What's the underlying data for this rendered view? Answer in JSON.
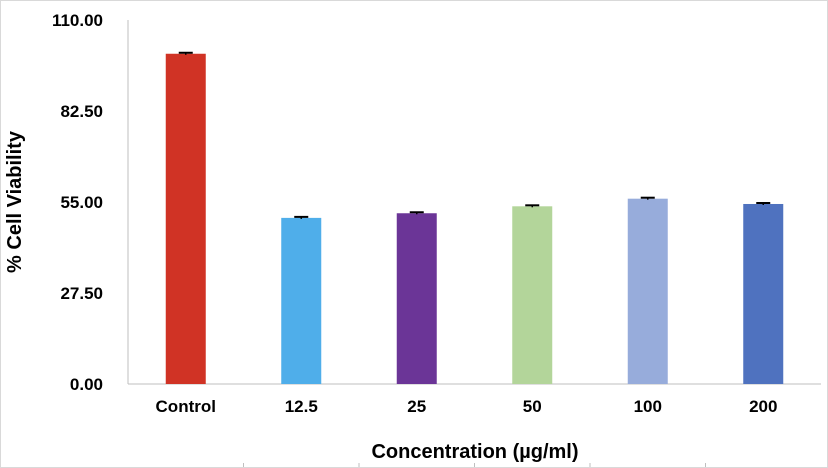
{
  "chart_data": {
    "type": "bar",
    "title": "",
    "xlabel": "Concentration (µg/ml)",
    "ylabel": "% Cell Viability",
    "categories": [
      "Control",
      "12.5",
      "25",
      "50",
      "100",
      "200"
    ],
    "values": [
      99.8,
      50.2,
      51.6,
      53.7,
      56.0,
      54.4
    ],
    "errors": [
      0.3,
      0.3,
      0.3,
      0.3,
      0.3,
      0.3
    ],
    "colors": [
      "#d03325",
      "#4faeea",
      "#6b3597",
      "#b3d59a",
      "#97acdb",
      "#4f72bf"
    ],
    "ylim": [
      0,
      110
    ],
    "yticks": [
      "0.00",
      "27.50",
      "55.00",
      "82.50",
      "110.00"
    ],
    "ytick_values": [
      0,
      27.5,
      55,
      82.5,
      110
    ],
    "grid": false,
    "legend": "none"
  }
}
